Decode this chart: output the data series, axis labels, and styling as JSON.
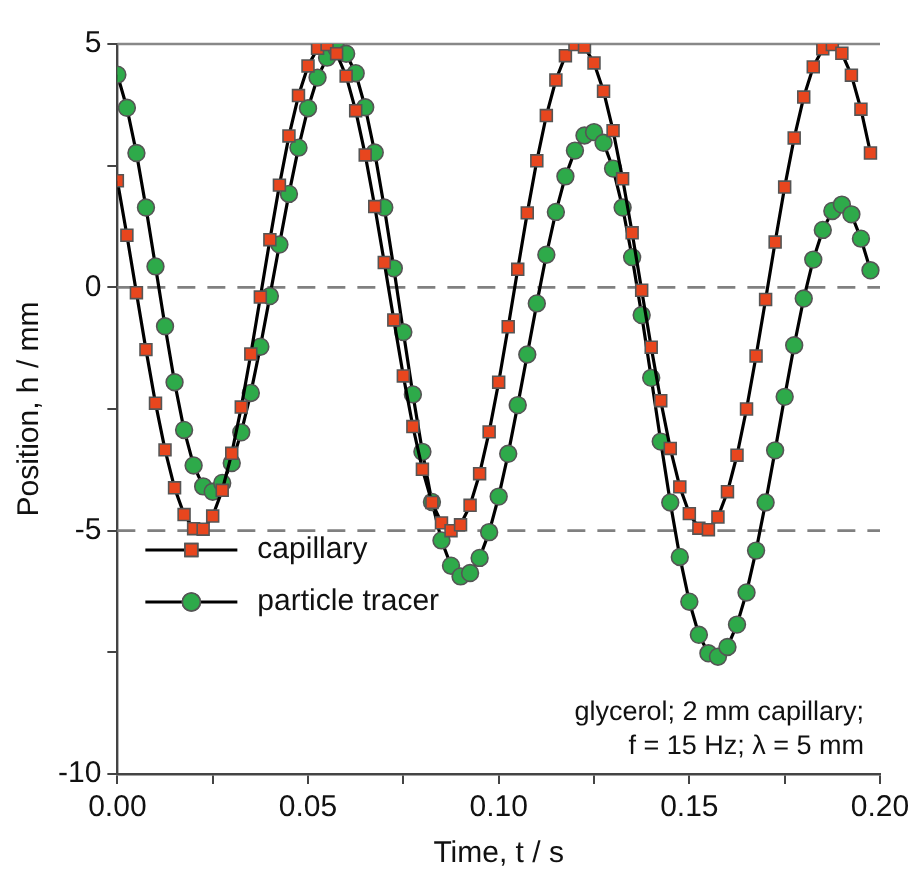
{
  "chart_data": {
    "type": "line",
    "xlabel": "Time, t / s",
    "ylabel": "Position, h / mm",
    "x": [
      0,
      0.0025,
      0.005,
      0.0075,
      0.01,
      0.0125,
      0.015,
      0.0175,
      0.02,
      0.0225,
      0.025,
      0.0275,
      0.03,
      0.0325,
      0.035,
      0.0375,
      0.04,
      0.0425,
      0.045,
      0.0475,
      0.05,
      0.0525,
      0.055,
      0.0575,
      0.06,
      0.0625,
      0.065,
      0.0675,
      0.07,
      0.0725,
      0.075,
      0.0775,
      0.08,
      0.0825,
      0.085,
      0.0875,
      0.09,
      0.0925,
      0.095,
      0.0975,
      0.1,
      0.1025,
      0.105,
      0.1075,
      0.11,
      0.1125,
      0.115,
      0.1175,
      0.12,
      0.1225,
      0.125,
      0.1275,
      0.13,
      0.1325,
      0.135,
      0.1375,
      0.14,
      0.1425,
      0.145,
      0.1475,
      0.15,
      0.1525,
      0.155,
      0.1575,
      0.16,
      0.1625,
      0.165,
      0.1675,
      0.17,
      0.1725,
      0.175,
      0.1775,
      0.18,
      0.1825,
      0.185,
      0.1875,
      0.19,
      0.1925,
      0.195,
      0.1975
    ],
    "series": [
      {
        "name": "capillary",
        "color": "#e8461e",
        "marker": "square",
        "values": [
          2.19,
          1.07,
          -0.11,
          -1.28,
          -2.38,
          -3.34,
          -4.12,
          -4.67,
          -4.96,
          -4.97,
          -4.7,
          -4.17,
          -3.41,
          -2.46,
          -1.37,
          -0.2,
          0.98,
          2.1,
          3.11,
          3.94,
          4.55,
          4.91,
          4.99,
          4.8,
          4.34,
          3.63,
          2.72,
          1.66,
          0.51,
          -0.67,
          -1.82,
          -2.86,
          -3.74,
          -4.42,
          -4.84,
          -5,
          -4.88,
          -4.48,
          -3.83,
          -2.97,
          -1.95,
          -0.81,
          0.37,
          1.53,
          2.6,
          3.53,
          4.26,
          4.76,
          4.99,
          4.94,
          4.61,
          4.03,
          3.22,
          2.23,
          1.12,
          -0.06,
          -1.23,
          -2.33,
          -3.31,
          -4.1,
          -4.65,
          -4.95,
          -4.98,
          -4.72,
          -4.2,
          -3.45,
          -2.5,
          -1.41,
          -0.25,
          0.93,
          2.06,
          3.07,
          3.91,
          4.53,
          4.9,
          4.99,
          4.81,
          4.36,
          3.66,
          2.76
        ]
      },
      {
        "name": "particle tracer",
        "color": "#2eaa4a",
        "marker": "circle",
        "values": [
          4.37,
          3.69,
          2.76,
          1.64,
          0.43,
          -0.8,
          -1.95,
          -2.93,
          -3.66,
          -4.09,
          -4.2,
          -4.02,
          -3.61,
          -2.98,
          -2.17,
          -1.22,
          -0.18,
          0.88,
          1.92,
          2.87,
          3.68,
          4.31,
          4.72,
          4.9,
          4.8,
          4.4,
          3.7,
          2.77,
          1.64,
          0.39,
          -0.92,
          -2.2,
          -3.38,
          -4.41,
          -5.2,
          -5.72,
          -5.94,
          -5.87,
          -5.56,
          -5.03,
          -4.3,
          -3.42,
          -2.42,
          -1.38,
          -0.33,
          0.67,
          1.55,
          2.28,
          2.81,
          3.12,
          3.19,
          2.97,
          2.44,
          1.64,
          0.62,
          -0.57,
          -1.86,
          -3.17,
          -4.42,
          -5.54,
          -6.46,
          -7.14,
          -7.52,
          -7.59,
          -7.39,
          -6.93,
          -6.27,
          -5.41,
          -4.42,
          -3.35,
          -2.25,
          -1.19,
          -0.23,
          0.57,
          1.18,
          1.57,
          1.7,
          1.5,
          1,
          0.35
        ]
      }
    ],
    "xlim": [
      0,
      0.2
    ],
    "xticks": [
      {
        "value": 0,
        "label": "0.00"
      },
      {
        "value": 0.025,
        "label": null
      },
      {
        "value": 0.05,
        "label": "0.05"
      },
      {
        "value": 0.075,
        "label": null
      },
      {
        "value": 0.1,
        "label": "0.10"
      },
      {
        "value": 0.125,
        "label": null
      },
      {
        "value": 0.15,
        "label": "0.15"
      },
      {
        "value": 0.175,
        "label": null
      },
      {
        "value": 0.2,
        "label": "0.20"
      }
    ],
    "ylim": [
      -10,
      5
    ],
    "yticks": [
      -10,
      {
        "value": -7.5,
        "label": null
      },
      -5,
      {
        "value": -2.5,
        "label": null
      },
      0,
      {
        "value": 2.5,
        "label": null
      },
      5
    ],
    "ref_lines": [
      {
        "axis": "y",
        "value": 0,
        "color": "#808080",
        "line_style": "dashed"
      },
      {
        "axis": "y",
        "value": -5,
        "color": "#808080",
        "line_style": "dashed"
      }
    ],
    "annotations": [
      "glycerol; 2 mm capillary;",
      "f = 15 Hz; λ = 5 mm"
    ],
    "legend": "bottom left",
    "grid": false
  }
}
